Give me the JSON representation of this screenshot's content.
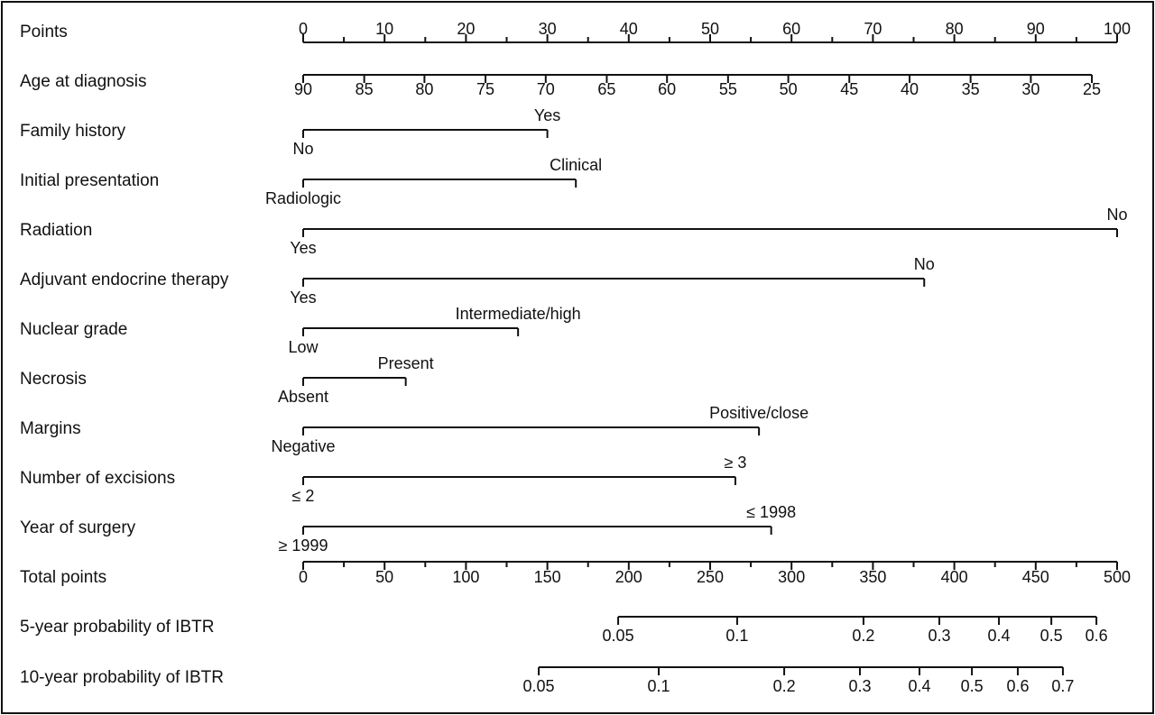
{
  "chart_data": {
    "type": "nomogram",
    "points_axis": {
      "label": "Points",
      "xlim": [
        0,
        100
      ],
      "xticks": [
        0,
        10,
        20,
        30,
        40,
        50,
        60,
        70,
        80,
        90,
        100
      ],
      "minor_xticks": [
        5,
        15,
        25,
        35,
        45,
        55,
        65,
        75,
        85,
        95
      ]
    },
    "variables": [
      {
        "label": "Age at diagnosis",
        "ticks": [
          90,
          85,
          80,
          75,
          70,
          65,
          60,
          55,
          50,
          45,
          40,
          35,
          30,
          25
        ],
        "points": [
          0,
          7.5,
          14.9,
          22.4,
          29.8,
          37.3,
          44.7,
          52.2,
          59.6,
          67.1,
          74.5,
          82.0,
          89.4,
          96.9
        ]
      },
      {
        "label": "Family history",
        "levels": [
          "No",
          "Yes"
        ],
        "points": [
          0,
          30
        ]
      },
      {
        "label": "Initial presentation",
        "levels": [
          "Radiologic",
          "Clinical"
        ],
        "points": [
          0,
          33.5
        ]
      },
      {
        "label": "Radiation",
        "levels": [
          "Yes",
          "No"
        ],
        "points": [
          0,
          100
        ]
      },
      {
        "label": "Adjuvant endocrine therapy",
        "levels": [
          "Yes",
          "No"
        ],
        "points": [
          0,
          76.3
        ]
      },
      {
        "label": "Nuclear grade",
        "levels": [
          "Low",
          "Intermediate/high"
        ],
        "points": [
          0,
          26.4
        ]
      },
      {
        "label": "Necrosis",
        "levels": [
          "Absent",
          "Present"
        ],
        "points": [
          0,
          12.6
        ]
      },
      {
        "label": "Margins",
        "levels": [
          "Negative",
          "Positive/close"
        ],
        "points": [
          0,
          56
        ]
      },
      {
        "label": "Number of excisions",
        "levels": [
          "≤ 2",
          "≥ 3"
        ],
        "points": [
          0,
          53.1
        ]
      },
      {
        "label": "Year of surgery",
        "levels": [
          "≥ 1999",
          "≤ 1998"
        ],
        "points": [
          0,
          57.5
        ]
      }
    ],
    "total_axis": {
      "label": "Total points",
      "xlim": [
        0,
        500
      ],
      "xticks": [
        0,
        50,
        100,
        150,
        200,
        250,
        300,
        350,
        400,
        450,
        500
      ],
      "minor_xticks": [
        25,
        75,
        125,
        175,
        225,
        275,
        325,
        375,
        425,
        475
      ]
    },
    "probability_axes": [
      {
        "label": "5-year probability of IBTR",
        "ticks": [
          0.05,
          0.1,
          0.2,
          0.3,
          0.4,
          0.5,
          0.6
        ],
        "total_points": [
          193.5,
          266.6,
          344.2,
          390.8,
          427.4,
          459.6,
          487.3
        ]
      },
      {
        "label": "10-year probability of IBTR",
        "ticks": [
          0.05,
          0.1,
          0.2,
          0.3,
          0.4,
          0.5,
          0.6,
          0.7
        ],
        "total_points": [
          144.7,
          218.4,
          295.5,
          342.0,
          378.6,
          410.8,
          439.0,
          466.7
        ]
      }
    ]
  }
}
